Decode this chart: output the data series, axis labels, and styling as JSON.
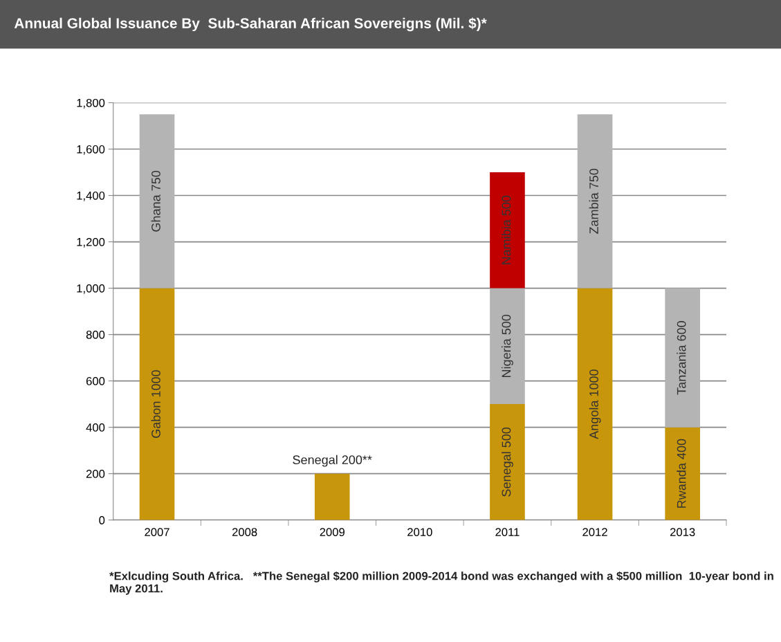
{
  "chart_data": {
    "type": "bar",
    "title": "Annual Global Issuance By  Sub-Saharan African Sovereigns (Mil. $)*",
    "categories": [
      "2007",
      "2008",
      "2009",
      "2010",
      "2011",
      "2012",
      "2013"
    ],
    "stacked": true,
    "series": [
      {
        "color": "#c8960a",
        "values": [
          1000,
          null,
          200,
          null,
          500,
          1000,
          400
        ],
        "value_labels": [
          "Gabon 1000",
          null,
          "Senegal 200**",
          null,
          "Senegal 500",
          "Angola 1000",
          "Rwanda 400"
        ]
      },
      {
        "color": "#b4b4b4",
        "values": [
          750,
          null,
          null,
          null,
          500,
          750,
          600
        ],
        "value_labels": [
          "Ghana 750",
          null,
          null,
          null,
          "Nigeria 500",
          "Zambia 750",
          "Tanzania 600"
        ]
      },
      {
        "color": "#c00000",
        "values": [
          null,
          null,
          null,
          null,
          500,
          null,
          null
        ],
        "value_labels": [
          null,
          null,
          null,
          null,
          "Namibia 500",
          null,
          null
        ]
      }
    ],
    "ylim": [
      0,
      1800
    ],
    "yticks": [
      0,
      200,
      400,
      600,
      800,
      {
        "value": 1000,
        "label": "1,000"
      },
      {
        "value": 1200,
        "label": "1,200"
      },
      {
        "value": 1400,
        "label": "1,400"
      },
      {
        "value": 1600,
        "label": "1,600"
      },
      {
        "value": 1800,
        "label": "1,800"
      }
    ],
    "grid": "y",
    "legend": false,
    "annotations": [
      "*Exlcuding South Africa.   **The Senegal $200 million 2009-2014 bond was exchanged with a $500 million  10-year bond in May 2011."
    ]
  }
}
